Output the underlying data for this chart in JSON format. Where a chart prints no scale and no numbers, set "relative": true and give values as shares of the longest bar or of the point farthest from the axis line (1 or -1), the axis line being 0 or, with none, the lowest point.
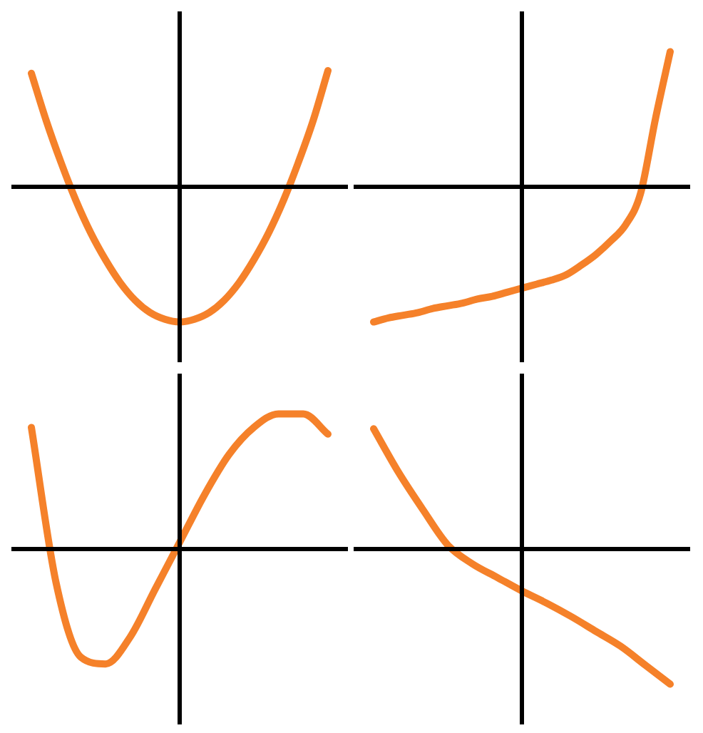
{
  "chart_data": [
    {
      "type": "line",
      "relative": true,
      "legend": false,
      "tick_labels": false,
      "categories": [
        null,
        null,
        null,
        null,
        null,
        null,
        null,
        null,
        null,
        null,
        null,
        null,
        null,
        null,
        null,
        null,
        null,
        null,
        null,
        null,
        null
      ],
      "series": [
        {
          "color": "#f5812a",
          "values": [
            0.84,
            0.49,
            0.18,
            -0.1,
            -0.34,
            -0.54,
            -0.71,
            -0.84,
            -0.93,
            -0.98,
            -1,
            -0.98,
            -0.93,
            -0.84,
            -0.71,
            -0.54,
            -0.34,
            -0.1,
            0.18,
            0.49,
            0.86
          ]
        }
      ]
    },
    {
      "type": "line",
      "relative": true,
      "legend": false,
      "tick_labels": false,
      "categories": [
        null,
        null,
        null,
        null,
        null,
        null,
        null,
        null,
        null,
        null,
        null,
        null,
        null,
        null,
        null,
        null,
        null,
        null,
        null,
        null,
        null
      ],
      "series": [
        {
          "color": "#f5812a",
          "values": [
            -1,
            -0.97,
            -0.95,
            -0.93,
            -0.9,
            -0.88,
            -0.86,
            -0.83,
            -0.81,
            -0.78,
            -0.75,
            -0.72,
            -0.69,
            -0.65,
            -0.58,
            -0.5,
            -0.4,
            -0.28,
            -0.05,
            0.5,
            1
          ]
        }
      ]
    },
    {
      "type": "line",
      "relative": true,
      "legend": false,
      "tick_labels": false,
      "categories": [
        null,
        null,
        null,
        null,
        null,
        null,
        null,
        null,
        null,
        null,
        null,
        null,
        null
      ],
      "series": [
        {
          "color": "#f5812a",
          "values": [
            0.9,
            -0.25,
            -0.8,
            -0.85,
            -0.65,
            -0.3,
            0.05,
            0.4,
            0.7,
            0.9,
            1,
            1,
            0.85
          ]
        }
      ]
    },
    {
      "type": "line",
      "relative": true,
      "legend": false,
      "tick_labels": false,
      "categories": [
        null,
        null,
        null,
        null,
        null,
        null,
        null,
        null,
        null,
        null,
        null,
        null,
        null
      ],
      "series": [
        {
          "color": "#f5812a",
          "values": [
            0.89,
            0.57,
            0.29,
            0.03,
            -0.11,
            -0.21,
            -0.31,
            -0.4,
            -0.5,
            -0.61,
            -0.72,
            -0.86,
            -1
          ]
        }
      ]
    }
  ]
}
